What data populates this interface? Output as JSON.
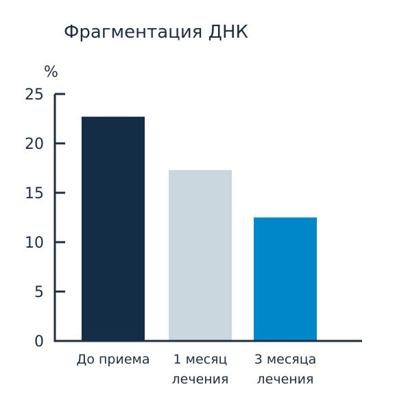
{
  "chart_data": {
    "type": "bar",
    "title": "Фрагментация ДНК",
    "ylabel": "%",
    "xlabel": "",
    "ylim": [
      0,
      25
    ],
    "yticks": [
      "0",
      "5",
      "10",
      "15",
      "20",
      "25"
    ],
    "categories": [
      [
        "До приема"
      ],
      [
        "1 месяц",
        "лечения"
      ],
      [
        "3 месяца",
        "лечения"
      ]
    ],
    "values": [
      22.7,
      17.3,
      12.5
    ],
    "colors": [
      "#142d47",
      "#cbd7df",
      "#0087c9"
    ],
    "axis_color": "#1e2e40",
    "grid": false,
    "legend": "none"
  }
}
